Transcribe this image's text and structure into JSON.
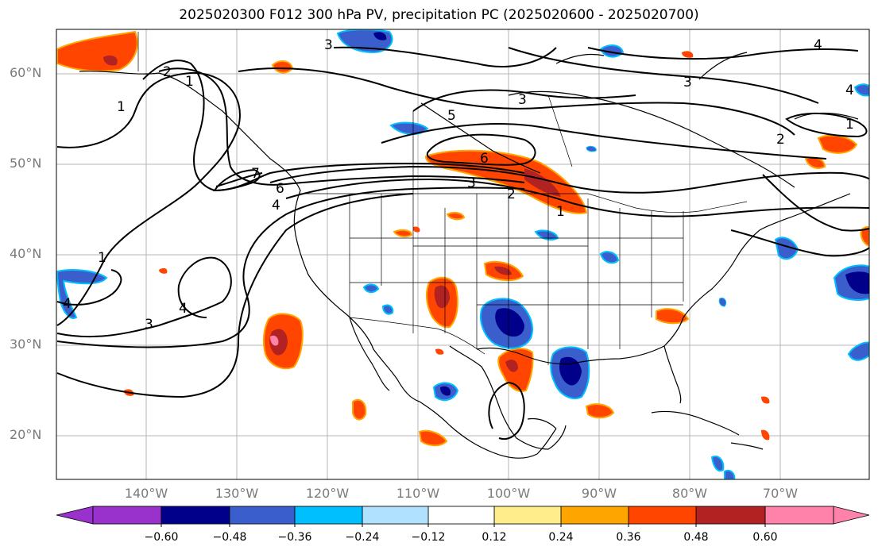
{
  "title": "2025020300 F012 300 hPa PV, precipitation PC (2025020600 - 2025020700)",
  "map": {
    "lat_labels": [
      "60°N",
      "50°N",
      "40°N",
      "30°N",
      "20°N"
    ],
    "lon_labels": [
      "140°W",
      "130°W",
      "120°W",
      "110°W",
      "100°W",
      "90°W",
      "80°W",
      "70°W"
    ],
    "contour_labels": [
      "2",
      "1",
      "3",
      "3",
      "4",
      "5",
      "6",
      "7",
      "6",
      "4",
      "3",
      "2",
      "1",
      "1",
      "4",
      "3",
      "4",
      "1",
      "2",
      "3",
      "1",
      "4"
    ]
  },
  "colorbar": {
    "ticks": [
      "−0.60",
      "−0.48",
      "−0.36",
      "−0.24",
      "−0.12",
      "0.12",
      "0.24",
      "0.36",
      "0.48",
      "0.60"
    ],
    "colors": [
      "#9932cc",
      "#00008b",
      "#3a5fcd",
      "#00bfff",
      "#b0e2ff",
      "#ffffff",
      "#ffec8b",
      "#ffa500",
      "#ff4500",
      "#b22222",
      "#ff82ab"
    ]
  }
}
